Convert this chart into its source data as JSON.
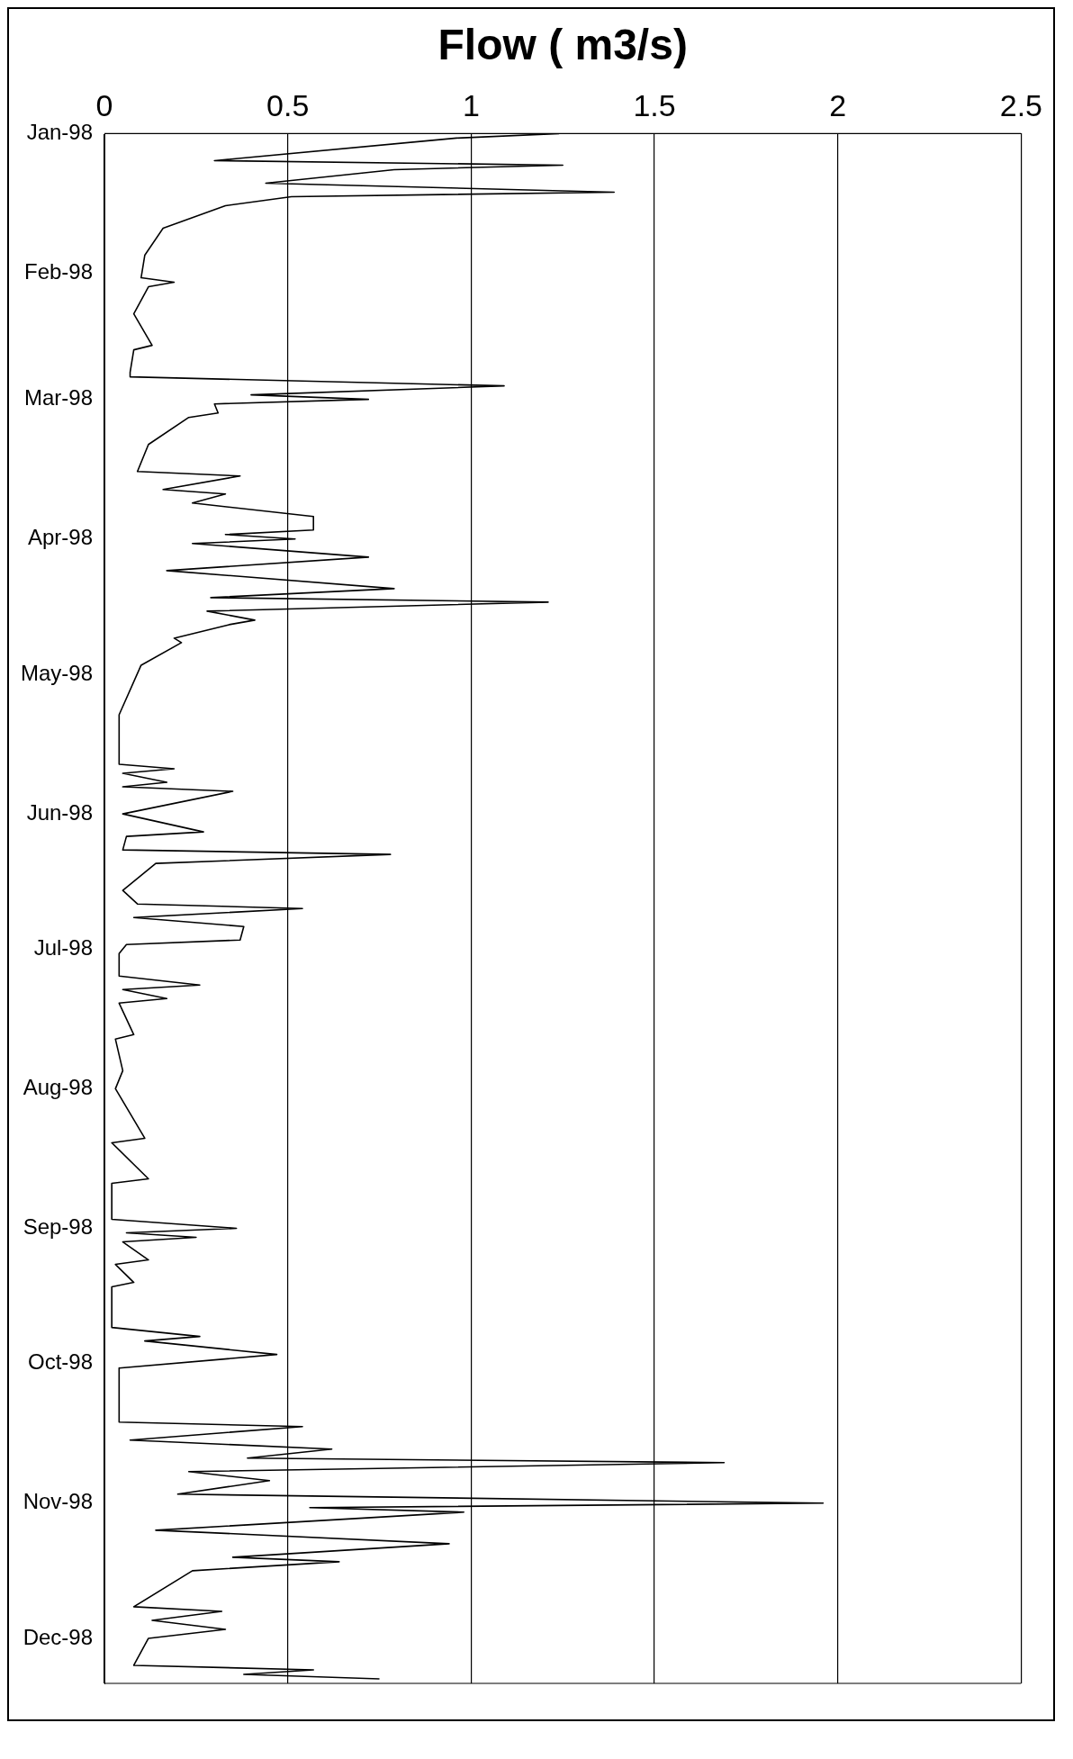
{
  "chart_data": {
    "type": "line",
    "orientation": "horizontal",
    "xlabel": "Flow ( m3/s)",
    "color": "#000000",
    "grid": "x",
    "legend": false,
    "marker": "none",
    "line_style": "solid",
    "xlim": [
      0,
      2.5
    ],
    "xticks": [
      0,
      0.5,
      1,
      1.5,
      2,
      2.5
    ],
    "ylim": [
      "1998-12-11",
      "1998-01-01"
    ],
    "yticks": [
      {
        "value": "1998-01-01",
        "label": "Jan-98"
      },
      {
        "value": "1998-02-01",
        "label": "Feb-98"
      },
      {
        "value": "1998-03-01",
        "label": "Mar-98"
      },
      {
        "value": "1998-04-01",
        "label": "Apr-98"
      },
      {
        "value": "1998-05-01",
        "label": "May-98"
      },
      {
        "value": "1998-06-01",
        "label": "Jun-98"
      },
      {
        "value": "1998-07-01",
        "label": "Jul-98"
      },
      {
        "value": "1998-08-01",
        "label": "Aug-98"
      },
      {
        "value": "1998-09-01",
        "label": "Sep-98"
      },
      {
        "value": "1998-10-01",
        "label": "Oct-98"
      },
      {
        "value": "1998-11-01",
        "label": "Nov-98"
      },
      {
        "value": "1998-12-01",
        "label": "Dec-98"
      }
    ],
    "x": [
      "1998-01-01",
      "1998-01-02",
      "1998-01-07",
      "1998-01-08",
      "1998-01-09",
      "1998-01-12",
      "1998-01-14",
      "1998-01-15",
      "1998-01-17",
      "1998-01-22",
      "1998-01-28",
      "1998-02-02",
      "1998-02-03",
      "1998-02-04",
      "1998-02-10",
      "1998-02-17",
      "1998-02-18",
      "1998-02-23",
      "1998-02-24",
      "1998-02-26",
      "1998-02-28",
      "1998-03-01",
      "1998-03-02",
      "1998-03-04",
      "1998-03-05",
      "1998-03-11",
      "1998-03-17",
      "1998-03-18",
      "1998-03-21",
      "1998-03-22",
      "1998-03-24",
      "1998-03-27",
      "1998-03-30",
      "1998-03-31",
      "1998-04-01",
      "1998-04-02",
      "1998-04-05",
      "1998-04-08",
      "1998-04-12",
      "1998-04-14",
      "1998-04-15",
      "1998-04-17",
      "1998-04-19",
      "1998-04-20",
      "1998-04-23",
      "1998-04-24",
      "1998-04-29",
      "1998-05-10",
      "1998-05-21",
      "1998-05-22",
      "1998-05-23",
      "1998-05-25",
      "1998-05-26",
      "1998-05-27",
      "1998-06-01",
      "1998-06-05",
      "1998-06-06",
      "1998-06-09",
      "1998-06-10",
      "1998-06-12",
      "1998-06-18",
      "1998-06-21",
      "1998-06-22",
      "1998-06-24",
      "1998-06-26",
      "1998-06-29",
      "1998-06-30",
      "1998-07-02",
      "1998-07-07",
      "1998-07-09",
      "1998-07-10",
      "1998-07-12",
      "1998-07-13",
      "1998-07-20",
      "1998-07-21",
      "1998-07-28",
      "1998-08-01",
      "1998-08-12",
      "1998-08-13",
      "1998-08-21",
      "1998-08-22",
      "1998-08-30",
      "1998-09-01",
      "1998-09-02",
      "1998-09-03",
      "1998-09-04",
      "1998-09-08",
      "1998-09-09",
      "1998-09-13",
      "1998-09-14",
      "1998-09-23",
      "1998-09-25",
      "1998-09-26",
      "1998-09-29",
      "1998-10-02",
      "1998-10-14",
      "1998-10-15",
      "1998-10-18",
      "1998-10-20",
      "1998-10-22",
      "1998-10-23",
      "1998-10-25",
      "1998-10-27",
      "1998-10-30",
      "1998-11-01",
      "1998-11-02",
      "1998-11-03",
      "1998-11-07",
      "1998-11-10",
      "1998-11-13",
      "1998-11-14",
      "1998-11-16",
      "1998-11-24",
      "1998-11-25",
      "1998-11-27",
      "1998-11-29",
      "1998-12-01",
      "1998-12-07",
      "1998-12-08",
      "1998-12-09",
      "1998-12-10"
    ],
    "values": [
      1.24,
      0.96,
      0.3,
      1.25,
      0.79,
      0.44,
      1.39,
      0.51,
      0.33,
      0.16,
      0.11,
      0.1,
      0.19,
      0.12,
      0.08,
      0.13,
      0.08,
      0.07,
      0.07,
      1.09,
      0.4,
      0.72,
      0.3,
      0.31,
      0.23,
      0.12,
      0.09,
      0.37,
      0.16,
      0.33,
      0.24,
      0.57,
      0.57,
      0.33,
      0.52,
      0.24,
      0.72,
      0.17,
      0.79,
      0.29,
      1.21,
      0.28,
      0.41,
      0.34,
      0.19,
      0.21,
      0.1,
      0.04,
      0.04,
      0.19,
      0.05,
      0.17,
      0.05,
      0.35,
      0.05,
      0.27,
      0.06,
      0.05,
      0.78,
      0.14,
      0.05,
      0.09,
      0.54,
      0.08,
      0.38,
      0.37,
      0.06,
      0.04,
      0.04,
      0.26,
      0.05,
      0.17,
      0.04,
      0.08,
      0.03,
      0.05,
      0.03,
      0.11,
      0.02,
      0.12,
      0.02,
      0.02,
      0.36,
      0.06,
      0.25,
      0.05,
      0.12,
      0.03,
      0.08,
      0.02,
      0.02,
      0.26,
      0.11,
      0.47,
      0.04,
      0.04,
      0.54,
      0.07,
      0.62,
      0.39,
      1.69,
      0.23,
      0.45,
      0.2,
      1.96,
      0.56,
      0.98,
      0.14,
      0.94,
      0.35,
      0.64,
      0.24,
      0.08,
      0.32,
      0.13,
      0.33,
      0.12,
      0.08,
      0.57,
      0.38,
      0.75
    ]
  }
}
